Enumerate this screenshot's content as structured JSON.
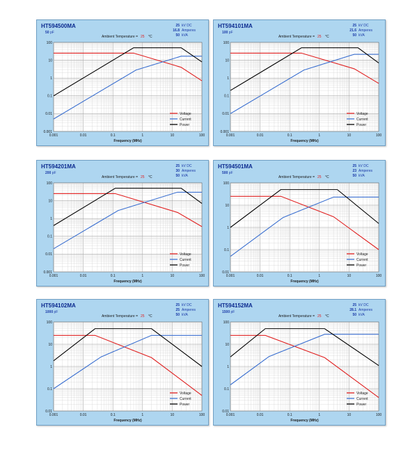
{
  "chart_data": [
    {
      "type": "line",
      "model": "HT594500MA",
      "capacitance": "50",
      "cap_unit": "pF",
      "ratings": [
        {
          "value": "25",
          "unit": "kV DC"
        },
        {
          "value": "16.8",
          "unit": "Amperes"
        },
        {
          "value": "50",
          "unit": "kVA"
        }
      ],
      "temp_label": "Ambient Temperature =",
      "temp_value": "25",
      "temp_unit": "°C",
      "xlabel": "Frequency (MHz)",
      "xscale": "log",
      "yscale": "log",
      "xlim": [
        0.001,
        100
      ],
      "ylim": [
        0.001,
        100
      ],
      "x_ticks": [
        "0.001",
        "0.01",
        "0.1",
        "1",
        "10",
        "100"
      ],
      "y_ticks": [
        "0.001",
        "0.01",
        "0.1",
        "1",
        "10",
        "100"
      ],
      "legend_position": "bottom-right",
      "grid": true,
      "series": [
        {
          "name": "Voltage",
          "color": "#e02020",
          "points": [
            [
              0.001,
              25
            ],
            [
              0.5,
              25
            ],
            [
              20,
              4
            ],
            [
              100,
              0.7
            ]
          ]
        },
        {
          "name": "Current",
          "color": "#3a6fd0",
          "points": [
            [
              0.001,
              0.005
            ],
            [
              0.6,
              2.8
            ],
            [
              20,
              16.8
            ],
            [
              100,
              16.8
            ]
          ]
        },
        {
          "name": "Power",
          "color": "#000000",
          "points": [
            [
              0.001,
              0.1
            ],
            [
              0.5,
              50
            ],
            [
              20,
              50
            ],
            [
              100,
              8
            ]
          ]
        }
      ]
    },
    {
      "type": "line",
      "model": "HT594101MA",
      "capacitance": "100",
      "cap_unit": "pF",
      "ratings": [
        {
          "value": "25",
          "unit": "kV DC"
        },
        {
          "value": "21.6",
          "unit": "Amperes"
        },
        {
          "value": "50",
          "unit": "kVA"
        }
      ],
      "temp_label": "Ambient Temperature =",
      "temp_value": "25",
      "temp_unit": "°C",
      "xlabel": "Frequency (MHz)",
      "xscale": "log",
      "yscale": "log",
      "xlim": [
        0.001,
        100
      ],
      "ylim": [
        0.001,
        100
      ],
      "x_ticks": [
        "0.001",
        "0.01",
        "0.1",
        "1",
        "10",
        "100"
      ],
      "y_ticks": [
        "0.001",
        "0.01",
        "0.1",
        "1",
        "10",
        "100"
      ],
      "legend_position": "bottom-right",
      "grid": true,
      "series": [
        {
          "name": "Voltage",
          "color": "#e02020",
          "points": [
            [
              0.001,
              25
            ],
            [
              0.25,
              25
            ],
            [
              15,
              3.3
            ],
            [
              100,
              0.5
            ]
          ]
        },
        {
          "name": "Current",
          "color": "#3a6fd0",
          "points": [
            [
              0.001,
              0.01
            ],
            [
              0.3,
              2.8
            ],
            [
              15,
              21.6
            ],
            [
              100,
              21.6
            ]
          ]
        },
        {
          "name": "Power",
          "color": "#000000",
          "points": [
            [
              0.001,
              0.2
            ],
            [
              0.25,
              50
            ],
            [
              20,
              50
            ],
            [
              100,
              7
            ]
          ]
        }
      ]
    },
    {
      "type": "line",
      "model": "HT594201MA",
      "capacitance": "200",
      "cap_unit": "pF",
      "ratings": [
        {
          "value": "25",
          "unit": "kV DC"
        },
        {
          "value": "30",
          "unit": "Amperes"
        },
        {
          "value": "50",
          "unit": "kVA"
        }
      ],
      "temp_label": "Ambient Temperature =",
      "temp_value": "25",
      "temp_unit": "°C",
      "xlabel": "Frequency (MHz)",
      "xscale": "log",
      "yscale": "log",
      "xlim": [
        0.001,
        100
      ],
      "ylim": [
        0.001,
        100
      ],
      "x_ticks": [
        "0.001",
        "0.01",
        "0.1",
        "1",
        "10",
        "100"
      ],
      "y_ticks": [
        "0.001",
        "0.01",
        "0.1",
        "1",
        "10",
        "100"
      ],
      "legend_position": "bottom-right",
      "grid": true,
      "series": [
        {
          "name": "Voltage",
          "color": "#e02020",
          "points": [
            [
              0.001,
              25
            ],
            [
              0.12,
              25
            ],
            [
              15,
              2.2
            ],
            [
              100,
              0.35
            ]
          ]
        },
        {
          "name": "Current",
          "color": "#3a6fd0",
          "points": [
            [
              0.001,
              0.02
            ],
            [
              0.15,
              2.8
            ],
            [
              15,
              30
            ],
            [
              100,
              30
            ]
          ]
        },
        {
          "name": "Power",
          "color": "#000000",
          "points": [
            [
              0.001,
              0.4
            ],
            [
              0.12,
              50
            ],
            [
              20,
              50
            ],
            [
              100,
              7
            ]
          ]
        }
      ]
    },
    {
      "type": "line",
      "model": "HT594501MA",
      "capacitance": "500",
      "cap_unit": "pF",
      "ratings": [
        {
          "value": "25",
          "unit": "kV DC"
        },
        {
          "value": "23",
          "unit": "Amperes"
        },
        {
          "value": "50",
          "unit": "kVA"
        }
      ],
      "temp_label": "Ambient Temperature =",
      "temp_value": "25",
      "temp_unit": "°C",
      "xlabel": "Frequency (MHz)",
      "xscale": "log",
      "yscale": "log",
      "xlim": [
        0.001,
        100
      ],
      "ylim": [
        0.01,
        100
      ],
      "x_ticks": [
        "0.001",
        "0.01",
        "0.1",
        "1",
        "10",
        "100"
      ],
      "y_ticks": [
        "0.01",
        "0.1",
        "1",
        "10",
        "100"
      ],
      "legend_position": "bottom-right",
      "grid": true,
      "series": [
        {
          "name": "Voltage",
          "color": "#e02020",
          "points": [
            [
              0.001,
              25
            ],
            [
              0.05,
              25
            ],
            [
              3,
              3
            ],
            [
              100,
              0.1
            ]
          ]
        },
        {
          "name": "Current",
          "color": "#3a6fd0",
          "points": [
            [
              0.001,
              0.05
            ],
            [
              0.06,
              2.8
            ],
            [
              3,
              23
            ],
            [
              100,
              23
            ]
          ]
        },
        {
          "name": "Power",
          "color": "#000000",
          "points": [
            [
              0.001,
              1
            ],
            [
              0.05,
              50
            ],
            [
              4,
              50
            ],
            [
              100,
              1.5
            ]
          ]
        }
      ]
    },
    {
      "type": "line",
      "model": "HT594102MA",
      "capacitance": "1000",
      "cap_unit": "pF",
      "ratings": [
        {
          "value": "25",
          "unit": "kV DC"
        },
        {
          "value": "25",
          "unit": "Amperes"
        },
        {
          "value": "50",
          "unit": "kVA"
        }
      ],
      "temp_label": "Ambient Temperature =",
      "temp_value": "25",
      "temp_unit": "°C",
      "xlabel": "Frequency (MHz)",
      "xscale": "log",
      "yscale": "log",
      "xlim": [
        0.001,
        100
      ],
      "ylim": [
        0.01,
        100
      ],
      "x_ticks": [
        "0.001",
        "0.01",
        "0.1",
        "1",
        "10",
        "100"
      ],
      "y_ticks": [
        "0.01",
        "0.1",
        "1",
        "10",
        "100"
      ],
      "legend_position": "bottom-right",
      "grid": true,
      "series": [
        {
          "name": "Voltage",
          "color": "#e02020",
          "points": [
            [
              0.001,
              25
            ],
            [
              0.025,
              25
            ],
            [
              2,
              2.5
            ],
            [
              100,
              0.05
            ]
          ]
        },
        {
          "name": "Current",
          "color": "#3a6fd0",
          "points": [
            [
              0.001,
              0.1
            ],
            [
              0.04,
              2.7
            ],
            [
              2,
              25
            ],
            [
              100,
              25
            ]
          ]
        },
        {
          "name": "Power",
          "color": "#000000",
          "points": [
            [
              0.001,
              1.8
            ],
            [
              0.025,
              50
            ],
            [
              2,
              50
            ],
            [
              100,
              1
            ]
          ]
        }
      ]
    },
    {
      "type": "line",
      "model": "HT594152MA",
      "capacitance": "1500",
      "cap_unit": "pF",
      "ratings": [
        {
          "value": "25",
          "unit": "kV DC"
        },
        {
          "value": "28.1",
          "unit": "Amperes"
        },
        {
          "value": "50",
          "unit": "kVA"
        }
      ],
      "temp_label": "Ambient Temperature =",
      "temp_value": "25",
      "temp_unit": "°C",
      "xlabel": "Frequency (MHz)",
      "xscale": "log",
      "yscale": "log",
      "xlim": [
        0.001,
        100
      ],
      "ylim": [
        0.01,
        100
      ],
      "x_ticks": [
        "0.001",
        "0.01",
        "0.1",
        "1",
        "10",
        "100"
      ],
      "y_ticks": [
        "0.01",
        "0.1",
        "1",
        "10",
        "100"
      ],
      "legend_position": "bottom-right",
      "grid": true,
      "series": [
        {
          "name": "Voltage",
          "color": "#e02020",
          "points": [
            [
              0.001,
              25
            ],
            [
              0.015,
              25
            ],
            [
              1.5,
              2.5
            ],
            [
              100,
              0.04
            ]
          ]
        },
        {
          "name": "Current",
          "color": "#3a6fd0",
          "points": [
            [
              0.001,
              0.15
            ],
            [
              0.02,
              2.8
            ],
            [
              1.5,
              28
            ],
            [
              100,
              28
            ]
          ]
        },
        {
          "name": "Power",
          "color": "#000000",
          "points": [
            [
              0.001,
              2.7
            ],
            [
              0.015,
              50
            ],
            [
              1.5,
              50
            ],
            [
              100,
              1.1
            ]
          ]
        }
      ]
    }
  ]
}
